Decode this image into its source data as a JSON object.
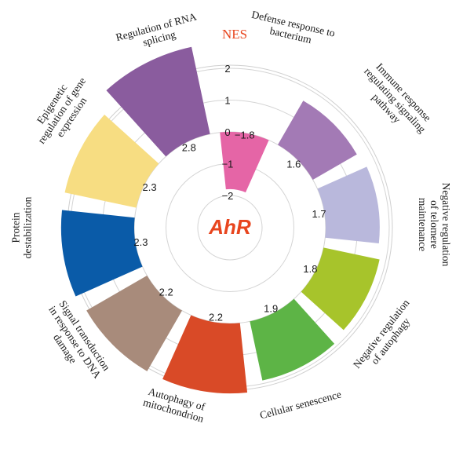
{
  "chart_data": {
    "type": "bar",
    "layout": "polar",
    "title": "",
    "center_label": "AhR",
    "axis_title": "NES",
    "ylim": [
      -2,
      2
    ],
    "ticks": [
      2,
      1,
      0,
      -1,
      -2
    ],
    "tick_labels": [
      "2",
      "1",
      "0",
      "−1",
      "−2"
    ],
    "grid": true,
    "categories": [
      "Defense response to bacterium",
      "Immune response regulating signaling pathway",
      "Negative regulation of telomere maintenance",
      "Negative regulation of autophagy",
      "Cellular senescence",
      "Autophagy of mitochondrion",
      "Signal transduction in response to DNA damage",
      "Protein destabilization",
      "Epigenetic regulation of gene expression",
      "Regulation of RNA splicing"
    ],
    "values": [
      -1.8,
      1.6,
      1.7,
      1.8,
      1.9,
      2.2,
      2.2,
      2.3,
      2.3,
      2.8
    ],
    "value_labels": [
      "−1.8",
      "1.6",
      "1.7",
      "1.8",
      "1.9",
      "2.2",
      "2.2",
      "2.3",
      "2.3",
      "2.8"
    ],
    "colors": [
      "#e565a6",
      "#a37ab5",
      "#b9b8dc",
      "#a7c42b",
      "#5db446",
      "#d94a27",
      "#a88b7b",
      "#0a5ba8",
      "#f7dd82",
      "#8a5c9e"
    ]
  }
}
